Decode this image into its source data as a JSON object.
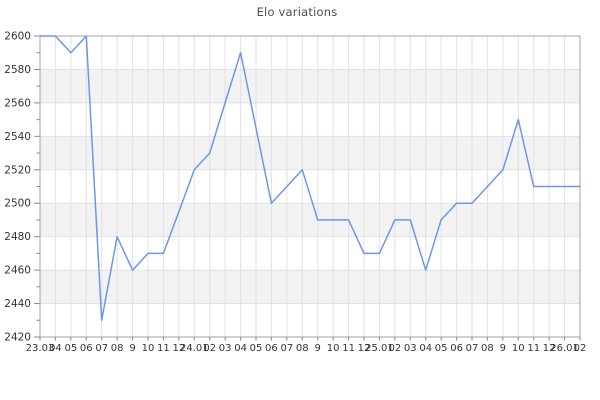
{
  "chart_data": {
    "type": "line",
    "title": "Elo variations",
    "x_labels": [
      "23.03",
      "04",
      "05",
      "06",
      "07",
      "08",
      "9",
      "10",
      "11",
      "12",
      "24.01",
      "02",
      "03",
      "04",
      "05",
      "06",
      "07",
      "08",
      "9",
      "10",
      "11",
      "12",
      "25.01",
      "02",
      "03",
      "04",
      "05",
      "06",
      "07",
      "08",
      "9",
      "10",
      "11",
      "12",
      "26.01",
      "02"
    ],
    "values": [
      2600,
      2600,
      2590,
      2600,
      2430,
      2480,
      2460,
      2470,
      2470,
      2495,
      2520,
      2530,
      2560,
      2590,
      2545,
      2500,
      2510,
      2520,
      2490,
      2490,
      2490,
      2470,
      2470,
      2490,
      2490,
      2460,
      2490,
      2500,
      2500,
      2510,
      2520,
      2550,
      2510,
      2510,
      2510,
      2510
    ],
    "ylim": [
      2420,
      2600
    ],
    "y_ticks": [
      2420,
      2440,
      2460,
      2480,
      2500,
      2520,
      2540,
      2560,
      2580,
      2600
    ],
    "y_minor_step": 10,
    "bands": [
      [
        2580,
        2560
      ],
      [
        2540,
        2520
      ],
      [
        2500,
        2480
      ],
      [
        2460,
        2440
      ]
    ],
    "grid": true,
    "legend_position": "none",
    "colors": {
      "line": "#6e96e8",
      "grid": "#e2e2e2",
      "band": "#f2f2f2",
      "axis": "#a3a3a3",
      "tick": "#8a8a8a",
      "tick_text": "#333333",
      "title_text": "#4d4d4d"
    }
  }
}
